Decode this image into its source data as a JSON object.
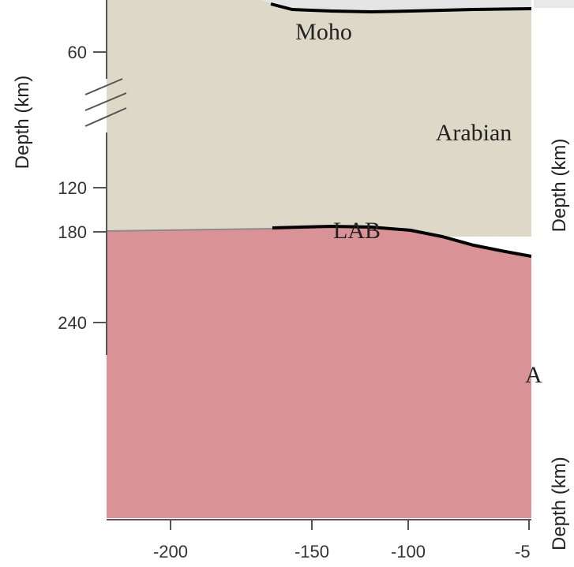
{
  "figure": {
    "y_axis_title": "Depth (km)",
    "right_axis_title_top": "Depth (km)",
    "right_axis_title_bottom": "Depth (km)",
    "y_ticks": [
      "60",
      "120",
      "180",
      "240"
    ],
    "x_ticks": [
      "-200",
      "-150",
      "-100",
      "-5"
    ],
    "labels": {
      "moho": "Moho",
      "arabian": "Arabian",
      "lab": "LAB",
      "edge_fragment": "A"
    },
    "colors": {
      "crust": "#dcd8c7",
      "mantle_lithosphere": "#ddd8c8",
      "asthenosphere": "#d99396",
      "upper_crust": "#e4e4e4",
      "boundary_line": "#000000"
    }
  }
}
